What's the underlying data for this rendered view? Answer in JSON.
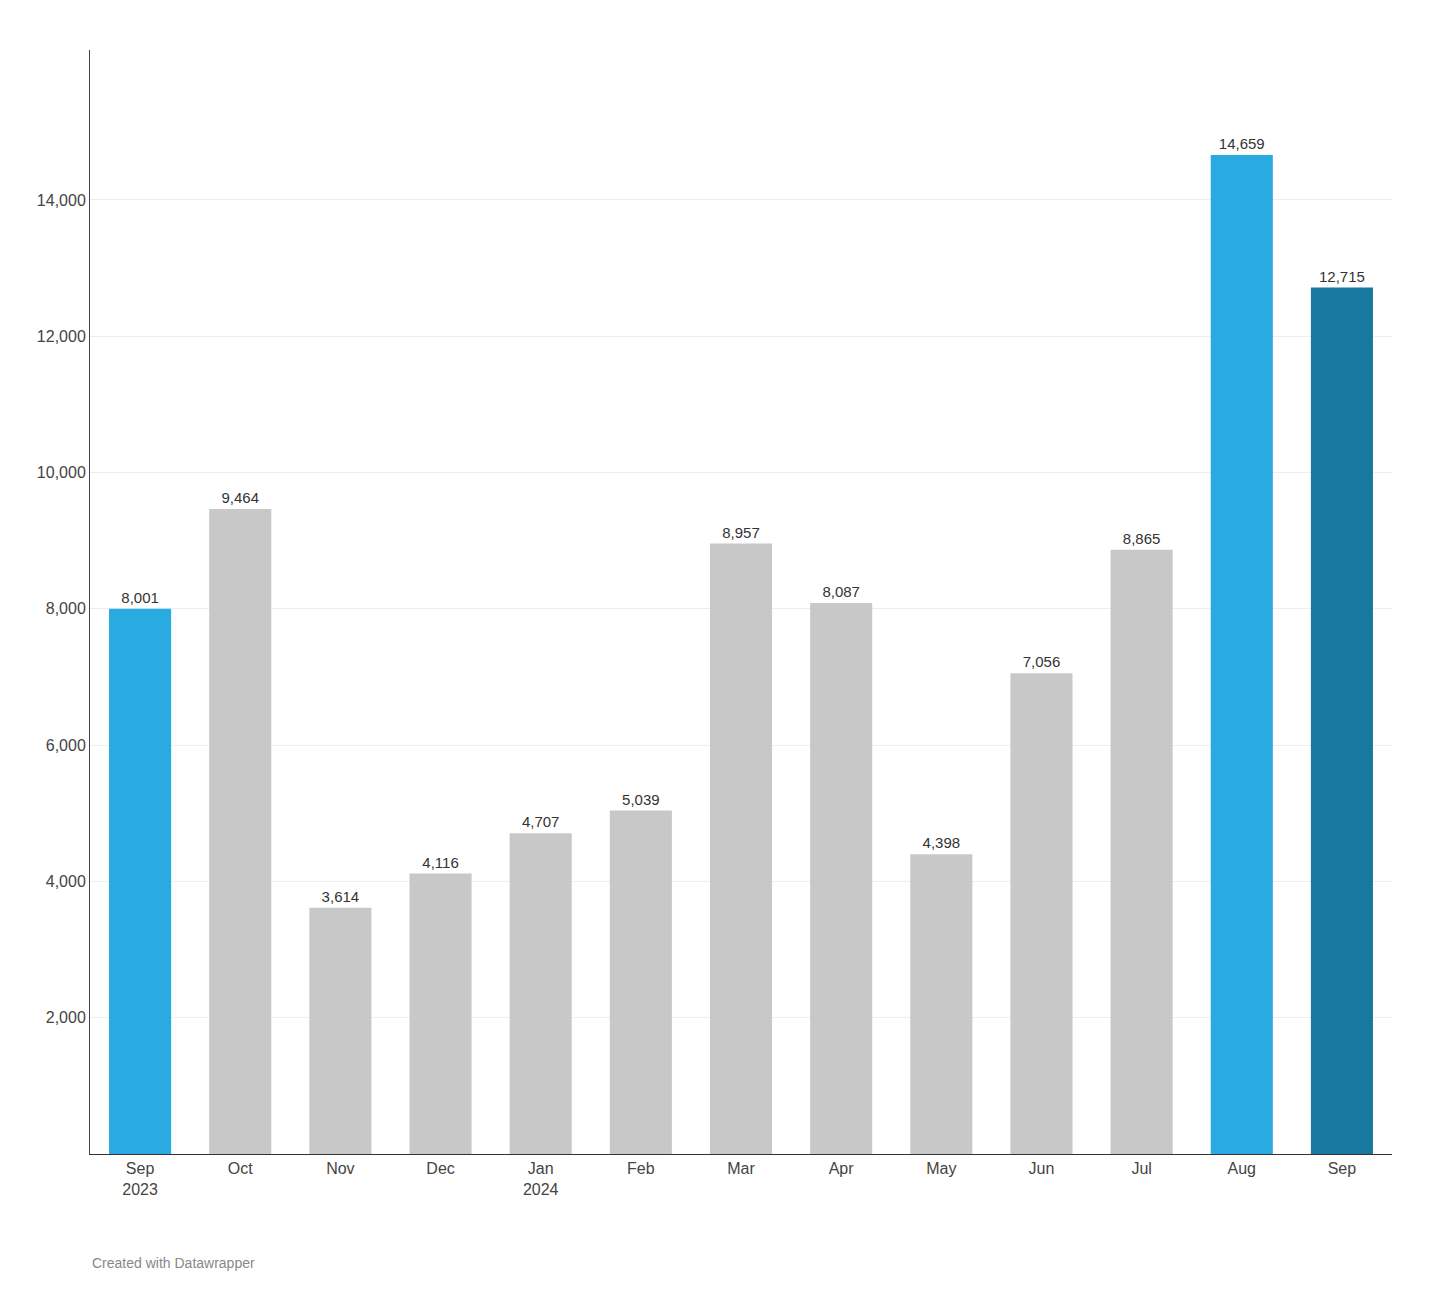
{
  "chart_data": {
    "type": "bar",
    "categories": [
      "Sep\n2023",
      "Oct",
      "Nov",
      "Dec",
      "Jan\n2024",
      "Feb",
      "Mar",
      "Apr",
      "May",
      "Jun",
      "Jul",
      "Aug",
      "Sep"
    ],
    "values": [
      8001,
      9464,
      3614,
      4116,
      4707,
      5039,
      8957,
      8087,
      4398,
      7056,
      8865,
      14659,
      12715
    ],
    "value_labels": [
      "8,001",
      "9,464",
      "3,614",
      "4,116",
      "4,707",
      "5,039",
      "8,957",
      "8,087",
      "4,398",
      "7,056",
      "8,865",
      "14,659",
      "12,715"
    ],
    "colors": [
      "#29abe2",
      "#c8c8c8",
      "#c8c8c8",
      "#c8c8c8",
      "#c8c8c8",
      "#c8c8c8",
      "#c8c8c8",
      "#c8c8c8",
      "#c8c8c8",
      "#c8c8c8",
      "#c8c8c8",
      "#29abe2",
      "#1878a0"
    ],
    "data_labels": true,
    "ylim": [
      0,
      16200
    ],
    "yticks": [
      {
        "value": 2000,
        "label": "2,000"
      },
      {
        "value": 4000,
        "label": "4,000"
      },
      {
        "value": 6000,
        "label": "6,000"
      },
      {
        "value": 8000,
        "label": "8,000"
      },
      {
        "value": 10000,
        "label": "10,000"
      },
      {
        "value": 12000,
        "label": "12,000"
      },
      {
        "value": 14000,
        "label": "14,000"
      }
    ],
    "grid": true,
    "annotations": [
      "Created with Datawrapper"
    ]
  }
}
